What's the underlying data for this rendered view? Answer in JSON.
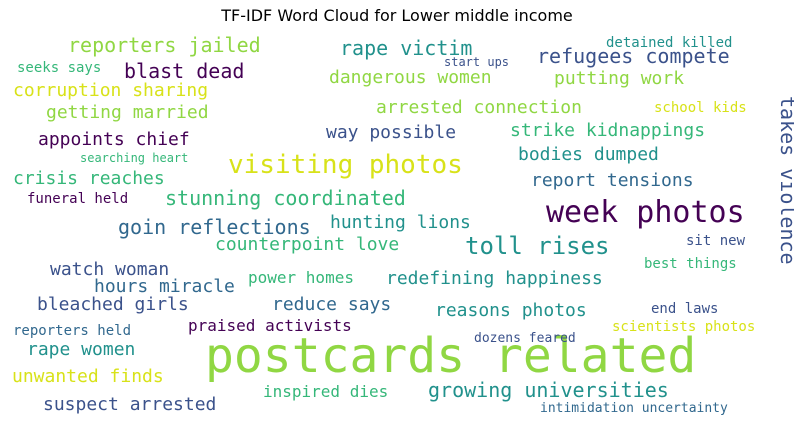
{
  "title": "TF-IDF Word Cloud for Lower middle income",
  "colors": {
    "purple": "#440154",
    "indigo": "#3b528b",
    "blue": "#31688e",
    "teal": "#21918c",
    "green": "#35b779",
    "lime": "#90d743",
    "yellow": "#d8e219"
  },
  "words": [
    "postcards related",
    "week photos",
    "visiting photos",
    "toll rises",
    "stunning coordinated",
    "goin reflections",
    "takes violence",
    "growing universities",
    "reporters jailed",
    "rape victim",
    "refugees compete",
    "blast dead",
    "dangerous women",
    "putting work",
    "corruption sharing",
    "arrested connection",
    "getting married",
    "strike kidnappings",
    "appoints chief",
    "way possible",
    "bodies dumped",
    "crisis reaches",
    "report tensions",
    "hunting lions",
    "counterpoint love",
    "watch woman",
    "redefining happiness",
    "hours miracle",
    "power homes",
    "bleached girls",
    "reduce says",
    "reasons photos",
    "praised activists",
    "rape women",
    "unwanted finds",
    "suspect arrested",
    "inspired dies",
    "detained killed",
    "start ups",
    "seeks says",
    "school kids",
    "searching heart",
    "funeral held",
    "sit new",
    "best things",
    "end laws",
    "reporters held",
    "scientists photos",
    "dozens feared",
    "intimidation uncertainty"
  ]
}
